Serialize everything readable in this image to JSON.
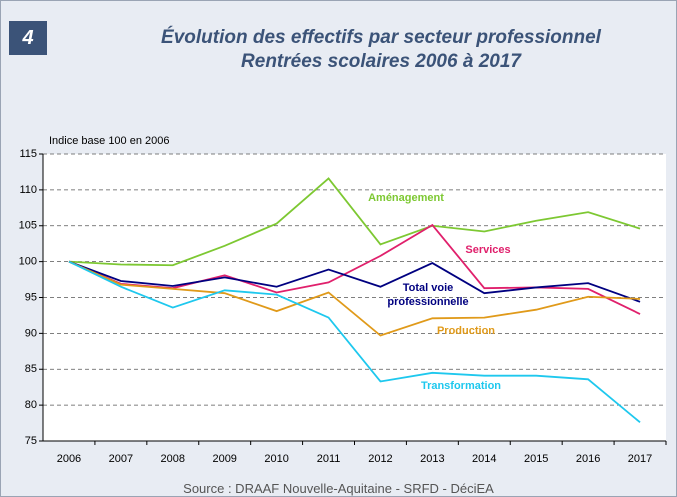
{
  "badge": "4",
  "chart_data": {
    "type": "line",
    "title": "Évolution des effectifs par secteur professionnel",
    "subtitle": "Rentrées scolaires 2006 à 2017",
    "y_label": "Indice base 100 en 2006",
    "source": "Source : DRAAF Nouvelle-Aquitaine - SRFD - DéciEA",
    "categories": [
      "2006",
      "2007",
      "2008",
      "2009",
      "2010",
      "2011",
      "2012",
      "2013",
      "2014",
      "2015",
      "2016",
      "2017"
    ],
    "series": [
      {
        "name": "Aménagement",
        "color": "#7dc832",
        "values": [
          100,
          99.6,
          99.5,
          102.2,
          105.3,
          111.6,
          102.4,
          105.0,
          104.2,
          105.7,
          106.9,
          104.6
        ]
      },
      {
        "name": "Services",
        "color": "#e0206c",
        "values": [
          100,
          96.9,
          96.3,
          98.1,
          95.7,
          97.1,
          100.8,
          105.1,
          96.3,
          96.4,
          96.2,
          92.7
        ]
      },
      {
        "name": "Total voie professionnelle",
        "color": "#000080",
        "values": [
          100,
          97.3,
          96.6,
          97.8,
          96.5,
          98.9,
          96.5,
          99.8,
          95.6,
          96.4,
          97.0,
          94.4
        ]
      },
      {
        "name": "Production",
        "color": "#e09a1a",
        "values": [
          100,
          96.8,
          96.2,
          95.6,
          93.1,
          95.7,
          89.7,
          92.1,
          92.2,
          93.3,
          95.1,
          94.8
        ]
      },
      {
        "name": "Transformation",
        "color": "#1ec8ee",
        "values": [
          100,
          96.5,
          93.6,
          96.0,
          95.4,
          92.2,
          83.3,
          84.5,
          84.1,
          84.1,
          83.6,
          77.6
        ]
      }
    ],
    "ylim": [
      75,
      115
    ],
    "yticks": [
      75,
      80,
      85,
      90,
      95,
      100,
      105,
      110,
      115
    ],
    "grid": true
  }
}
